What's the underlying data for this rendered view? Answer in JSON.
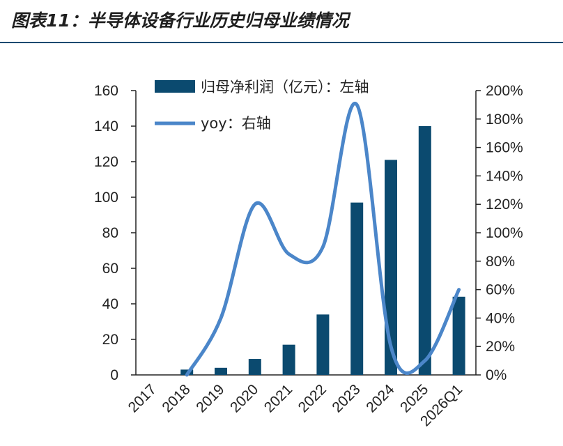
{
  "title": "图表11：半导体设备行业历史归母业绩情况",
  "chart_data": {
    "type": "bar+line",
    "categories": [
      "2017",
      "2018",
      "2019",
      "2020",
      "2021",
      "2022",
      "2023",
      "2024",
      "2025",
      "2026Q1"
    ],
    "series": [
      {
        "name": "归母净利润（亿元）：左轴",
        "type": "bar",
        "axis": "left",
        "values": [
          0,
          3,
          4,
          9,
          17,
          34,
          97,
          121,
          140,
          44
        ]
      },
      {
        "name": "yoy：右轴",
        "type": "line",
        "axis": "right",
        "smooth": true,
        "values": [
          null,
          0,
          40,
          120,
          85,
          90,
          190,
          20,
          10,
          60
        ]
      }
    ],
    "y_left": {
      "ticks": [
        "0",
        "20",
        "40",
        "60",
        "80",
        "100",
        "120",
        "140",
        "160"
      ],
      "ylim": [
        0,
        160
      ]
    },
    "y_right": {
      "ticks": [
        "0%",
        "20%",
        "40%",
        "60%",
        "80%",
        "100%",
        "120%",
        "140%",
        "160%",
        "180%",
        "200%"
      ],
      "ylim": [
        0,
        200
      ]
    },
    "legend_position": "top-left",
    "grid": false,
    "colors": {
      "bar": "#0b4a6f",
      "line": "#4b86c9",
      "rule": "#0f4a70"
    }
  }
}
